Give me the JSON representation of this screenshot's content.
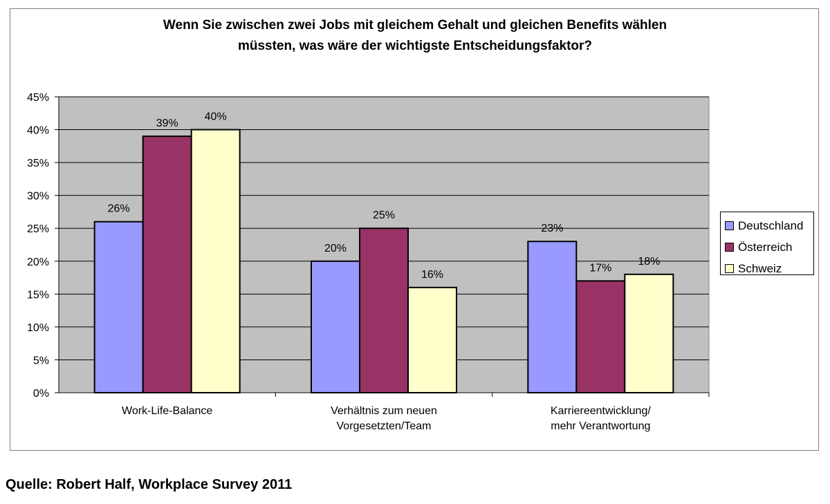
{
  "title": "Wenn Sie zwischen zwei Jobs mit gleichem Gehalt und gleichen Benefits wählen\nmüssten, was wäre der wichtigste Entscheidungsfaktor?",
  "source": "Quelle: Robert Half, Workplace Survey 2011",
  "colors": {
    "plot_background": "#c0c0c0",
    "Deutschland": "#9999ff",
    "Österreich": "#993366",
    "Schweiz": "#ffffcc"
  },
  "chart_data": {
    "type": "bar",
    "title": "Wenn Sie zwischen zwei Jobs mit gleichem Gehalt und gleichen Benefits wählen\nmüssten, was wäre der wichtigste Entscheidungsfaktor?",
    "categories": [
      "Work-Life-Balance",
      "Verhältnis zum neuen\nVorgesetzten/Team",
      "Karriereentwicklung/\nmehr Verantwortung"
    ],
    "series": [
      {
        "name": "Deutschland",
        "values": [
          26,
          20,
          23
        ]
      },
      {
        "name": "Österreich",
        "values": [
          39,
          25,
          17
        ]
      },
      {
        "name": "Schweiz",
        "values": [
          40,
          16,
          18
        ]
      }
    ],
    "data_labels": [
      [
        "26%",
        "20%",
        "23%"
      ],
      [
        "39%",
        "25%",
        "17%"
      ],
      [
        "40%",
        "16%",
        "18%"
      ]
    ],
    "ylim": [
      0,
      45
    ],
    "yticks": [
      "0%",
      "5%",
      "10%",
      "15%",
      "20%",
      "25%",
      "30%",
      "35%",
      "40%",
      "45%"
    ],
    "grid": true,
    "legend": "right",
    "xlabel": "",
    "ylabel": ""
  }
}
